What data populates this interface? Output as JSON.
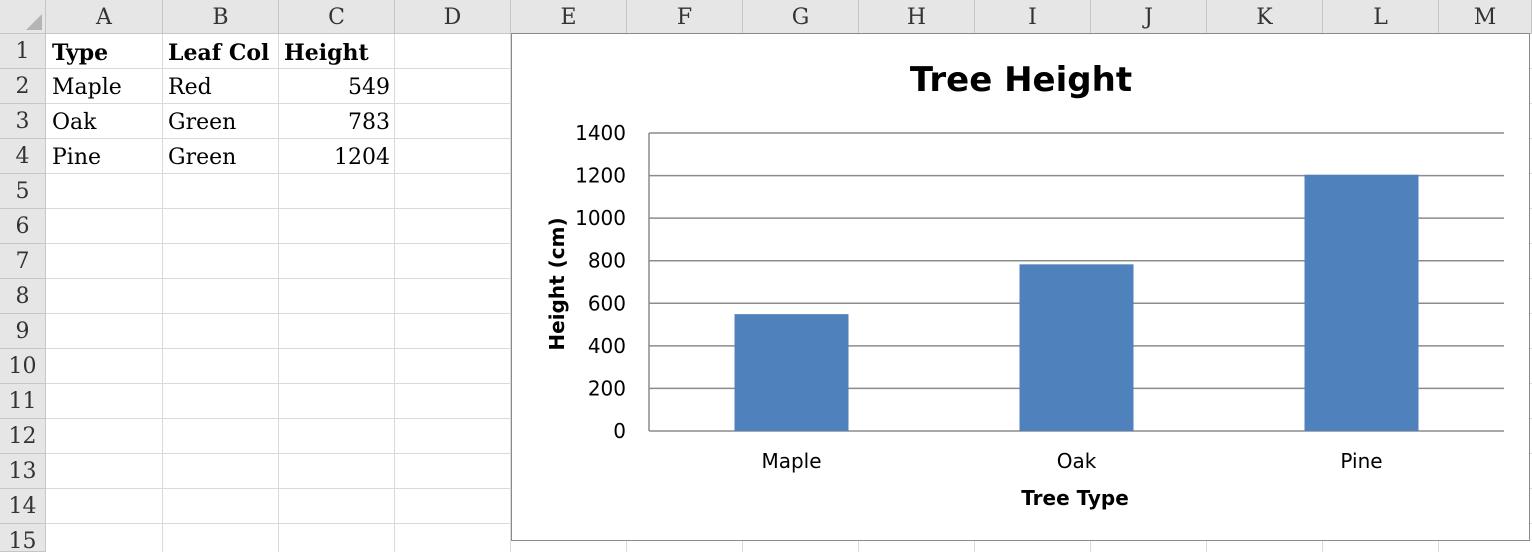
{
  "spreadsheet": {
    "columns": [
      "A",
      "B",
      "C",
      "D",
      "E",
      "F",
      "G",
      "H",
      "I",
      "J",
      "K",
      "L",
      "M"
    ],
    "rows": [
      "1",
      "2",
      "3",
      "4",
      "5",
      "6",
      "7",
      "8",
      "9",
      "10",
      "11",
      "12",
      "13",
      "14",
      "15"
    ],
    "header": [
      "Type",
      "Leaf Col",
      "Height"
    ],
    "data": [
      [
        "Maple",
        "Red",
        "549"
      ],
      [
        "Oak",
        "Green",
        "783"
      ],
      [
        "Pine",
        "Green",
        "1204"
      ]
    ]
  },
  "chart_data": {
    "type": "bar",
    "title": "Tree Height",
    "xlabel": "Tree Type",
    "ylabel": "Height (cm)",
    "categories": [
      "Maple",
      "Oak",
      "Pine"
    ],
    "values": [
      549,
      783,
      1204
    ],
    "ylim": [
      0,
      1400
    ],
    "yticks": [
      "0",
      "200",
      "400",
      "600",
      "800",
      "1000",
      "1200",
      "1400"
    ],
    "grid": true,
    "legend": "none",
    "bar_color": "#4f81bd"
  }
}
